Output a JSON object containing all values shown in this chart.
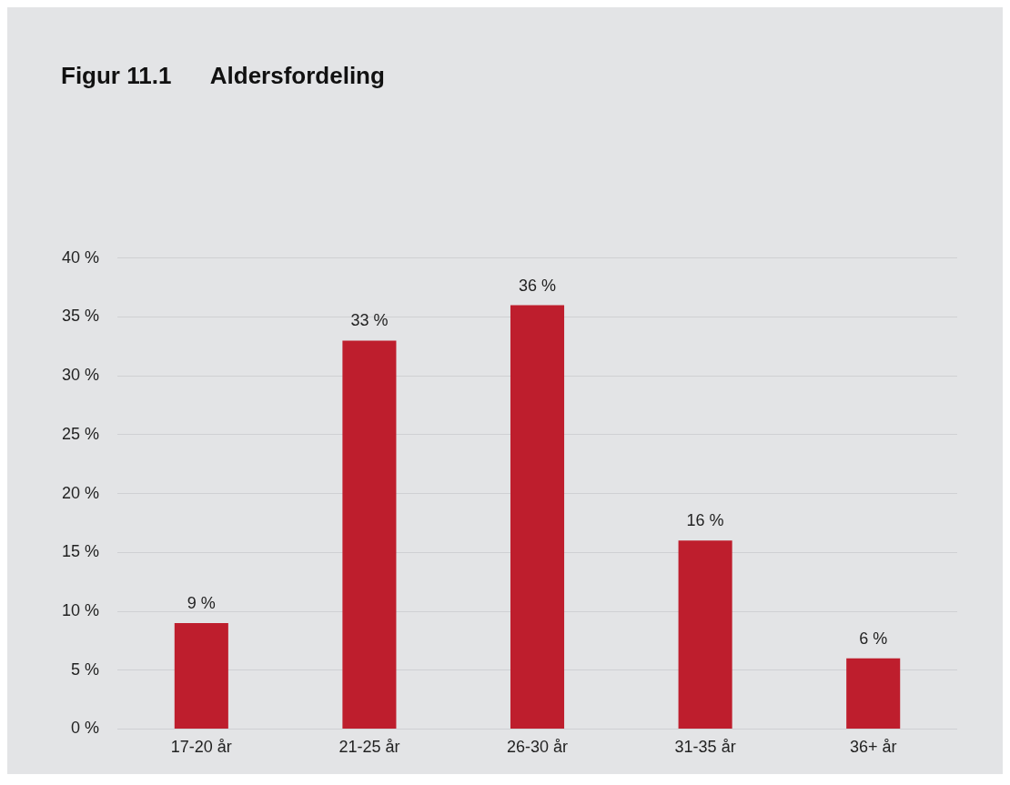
{
  "chart_data": {
    "type": "bar",
    "title": "Figur 11.1      Aldersfordeling",
    "categories": [
      "17-20 år",
      "21-25 år",
      "26-30 år",
      "31-35 år",
      "36+ år"
    ],
    "values": [
      9,
      33,
      36,
      16,
      6
    ],
    "value_labels": [
      "9 %",
      "33 %",
      "36 %",
      "16 %",
      "6 %"
    ],
    "color": "#be1e2d",
    "ylim": [
      0,
      40
    ],
    "yticks": [
      {
        "value": 0,
        "label": "0 %"
      },
      {
        "value": 5,
        "label": "5 %"
      },
      {
        "value": 10,
        "label": "10 %"
      },
      {
        "value": 15,
        "label": "15 %"
      },
      {
        "value": 20,
        "label": "20 %"
      },
      {
        "value": 25,
        "label": "25 %"
      },
      {
        "value": 30,
        "label": "30 %"
      },
      {
        "value": 35,
        "label": "35 %"
      },
      {
        "value": 40,
        "label": "40 %"
      }
    ],
    "grid": "y",
    "legend": false
  }
}
